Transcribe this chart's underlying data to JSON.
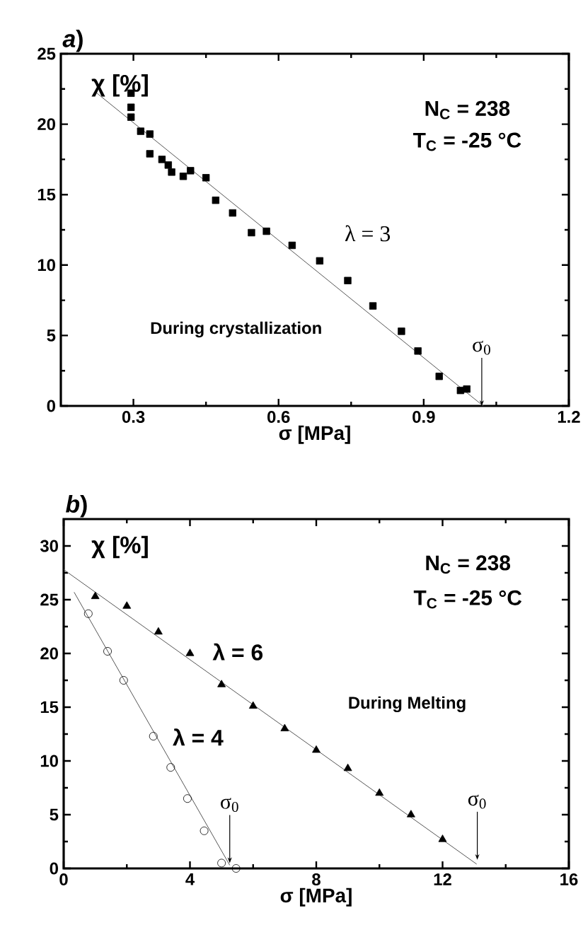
{
  "chart_data": [
    {
      "type": "scatter",
      "title": "*a*)",
      "xlabel": "σ [MPa]",
      "ylabel": "χ [%]",
      "xlim": [
        0.15,
        1.2
      ],
      "ylim": [
        0,
        25
      ],
      "xticks": [
        0.3,
        0.6,
        0.9,
        1.2
      ],
      "yticks": [
        0,
        5,
        10,
        15,
        20,
        25
      ],
      "series": [
        {
          "color": "#000000",
          "marker": "square",
          "x": [
            0.295,
            0.295,
            0.295,
            0.315,
            0.334,
            0.334,
            0.359,
            0.372,
            0.379,
            0.403,
            0.418,
            0.45,
            0.47,
            0.505,
            0.544,
            0.575,
            0.628,
            0.685,
            0.743,
            0.795,
            0.854,
            0.888,
            0.932,
            0.976,
            0.989
          ],
          "values": [
            22.2,
            21.2,
            20.5,
            19.5,
            19.3,
            17.9,
            17.5,
            17.1,
            16.6,
            16.3,
            16.7,
            16.2,
            14.6,
            13.7,
            12.3,
            12.4,
            11.4,
            10.3,
            8.9,
            7.1,
            5.3,
            3.9,
            2.1,
            1.1,
            1.2
          ]
        },
        {
          "type": "line",
          "color": "#555555",
          "x": [
            0.221,
            1.023
          ],
          "values": [
            22.3,
            0
          ]
        }
      ],
      "annotations": [
        "N$_{C}$ = 238",
        "T$_{C}$ = -25 °C",
        "During crystallization",
        "λ = 3",
        {
          "text": "σ$_{0}$",
          "x": 1.02,
          "y": 0
        }
      ]
    },
    {
      "type": "scatter",
      "title": "*b*)",
      "xlabel": "σ [MPa]",
      "ylabel": "χ [%]",
      "xlim": [
        0,
        16
      ],
      "ylim": [
        0,
        32.5
      ],
      "xticks": [
        0,
        4,
        8,
        12,
        16
      ],
      "yticks": [
        0,
        5,
        10,
        15,
        20,
        25,
        30
      ],
      "series": [
        {
          "color": "#000000",
          "marker": "triangle",
          "x": [
            1,
            2,
            3,
            4,
            5,
            6,
            7,
            8,
            9,
            10,
            11,
            12
          ],
          "values": [
            25.3,
            24.4,
            22.0,
            20.0,
            17.1,
            15.1,
            13.0,
            11.0,
            9.3,
            7.0,
            5.0,
            2.7
          ]
        },
        {
          "color": "#000000",
          "marker": "circle",
          "x": [
            0.78,
            1.39,
            1.9,
            2.84,
            3.39,
            3.92,
            4.45,
            5.0,
            5.46
          ],
          "values": [
            23.7,
            20.2,
            17.5,
            12.3,
            9.4,
            6.5,
            3.5,
            0.5,
            0.0
          ]
        },
        {
          "type": "line",
          "color": "#555555",
          "x": [
            0,
            13.08
          ],
          "values": [
            27.8,
            0.4
          ]
        },
        {
          "type": "line",
          "color": "#555555",
          "x": [
            0.33,
            5.26
          ],
          "values": [
            25.7,
            0.3
          ]
        }
      ],
      "annotations": [
        "N$_{C}$ = 238",
        "T$_{C}$ = -25 °C",
        "During Melting",
        "λ = 6",
        "λ = 4",
        {
          "text": "σ$_{0}$",
          "x": 5.26,
          "y": 0.5
        },
        {
          "text": "σ$_{0}$",
          "x": 13.1,
          "y": 0.8
        }
      ]
    }
  ]
}
